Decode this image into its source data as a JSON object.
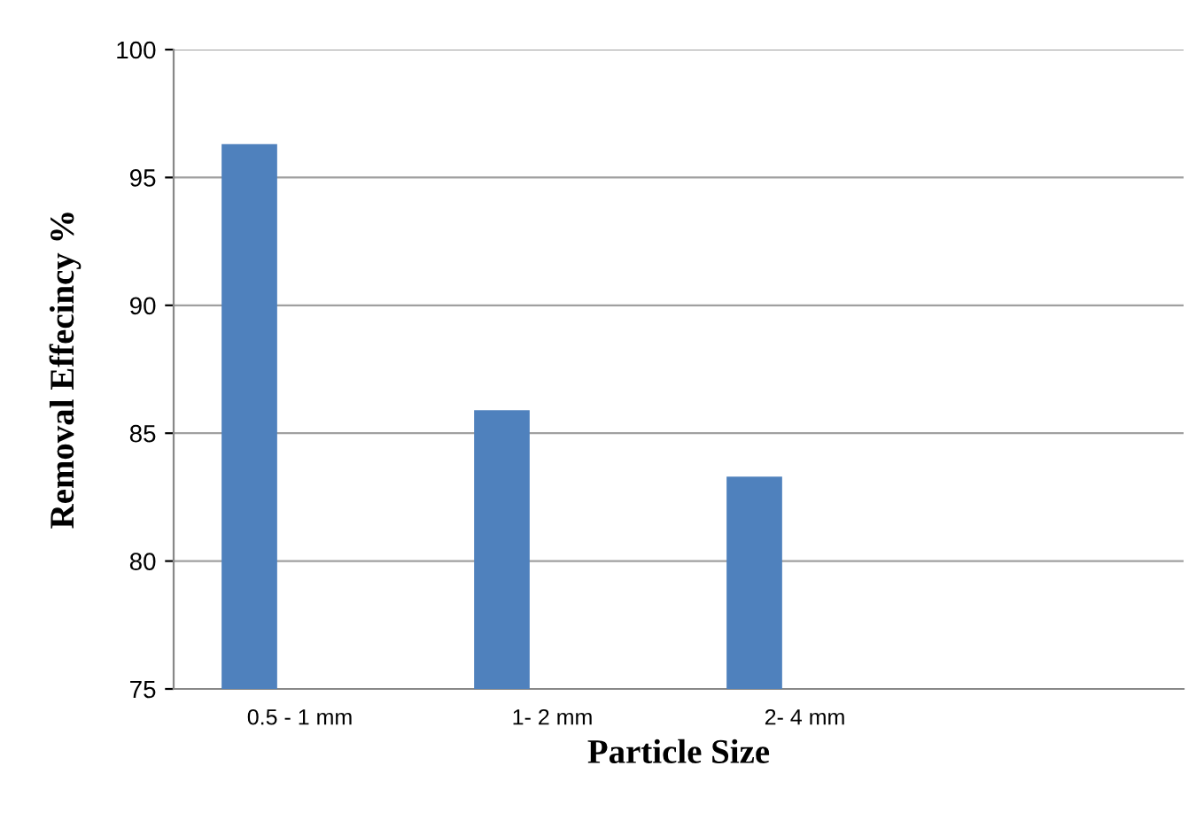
{
  "chart_data": {
    "type": "bar",
    "xlabel": "Particle Size",
    "ylabel": "Removal Effecincy %",
    "categories": [
      "0.5 - 1 mm",
      "1- 2 mm",
      "2- 4 mm",
      null
    ],
    "values": [
      96.3,
      85.9,
      83.3,
      null
    ],
    "color": "#4f81bd",
    "ylim": [
      75,
      100
    ],
    "yticks": [
      75,
      80,
      85,
      90,
      95,
      100
    ],
    "grid": "y",
    "legend": false
  }
}
